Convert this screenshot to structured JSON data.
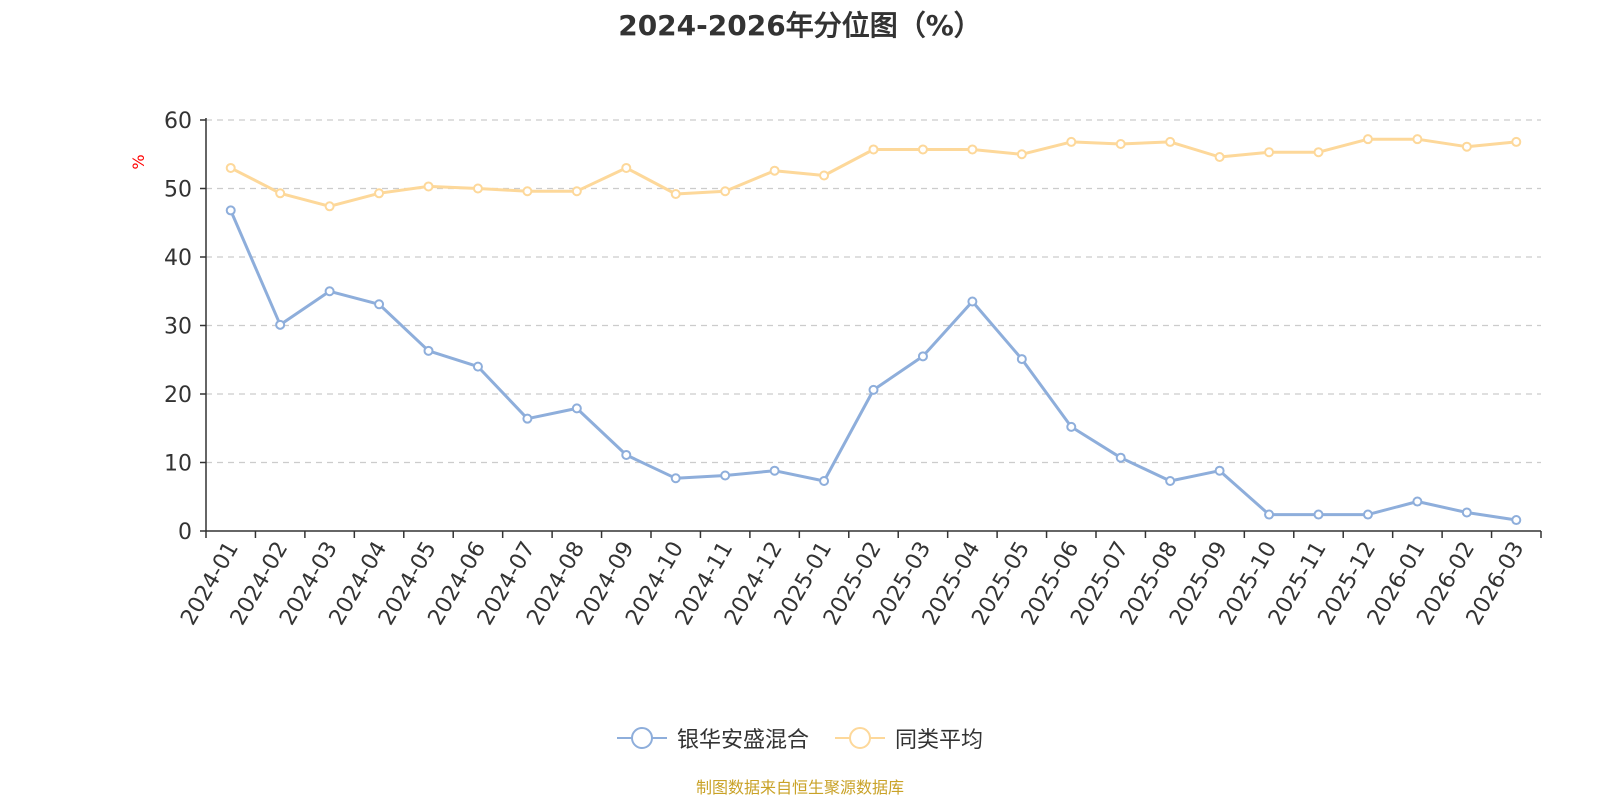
{
  "chart_data": {
    "type": "line",
    "title": "2024-2026年分位图（%）",
    "ylabel": "%",
    "xlabel": "",
    "ylim": [
      0,
      60
    ],
    "yticks": [
      0,
      10,
      20,
      30,
      40,
      50,
      60
    ],
    "grid": true,
    "legend_position": "bottom",
    "categories": [
      "2024-01",
      "2024-02",
      "2024-03",
      "2024-04",
      "2024-05",
      "2024-06",
      "2024-07",
      "2024-08",
      "2024-09",
      "2024-10",
      "2024-11",
      "2024-12",
      "2025-01",
      "2025-02",
      "2025-03",
      "2025-04",
      "2025-05",
      "2025-06",
      "2025-07",
      "2025-08",
      "2025-09",
      "2025-10",
      "2025-11",
      "2025-12",
      "2026-01",
      "2026-02",
      "2026-03"
    ],
    "series": [
      {
        "name": "银华安盛混合",
        "color": "#8eaedb",
        "values": [
          46.8,
          30.1,
          35.0,
          33.1,
          26.3,
          24.0,
          16.4,
          17.9,
          11.1,
          7.7,
          8.1,
          8.8,
          7.3,
          20.6,
          25.5,
          33.5,
          25.1,
          15.2,
          10.7,
          7.3,
          8.8,
          2.4,
          2.4,
          2.4,
          4.3,
          2.7,
          1.6
        ]
      },
      {
        "name": "同类平均",
        "color": "#fdd89a",
        "values": [
          53.0,
          49.3,
          47.4,
          49.3,
          50.3,
          50.0,
          49.6,
          49.6,
          53.0,
          49.2,
          49.6,
          52.6,
          51.9,
          55.7,
          55.7,
          55.7,
          55.0,
          56.8,
          56.5,
          56.8,
          54.6,
          55.3,
          55.3,
          57.2,
          57.2,
          56.1,
          56.8
        ]
      }
    ]
  },
  "source_note": "制图数据来自恒生聚源数据库",
  "colors": {
    "axis": "#333333",
    "grid": "#cccccc",
    "ylabel": "#ff0000",
    "source": "#c9a227"
  }
}
